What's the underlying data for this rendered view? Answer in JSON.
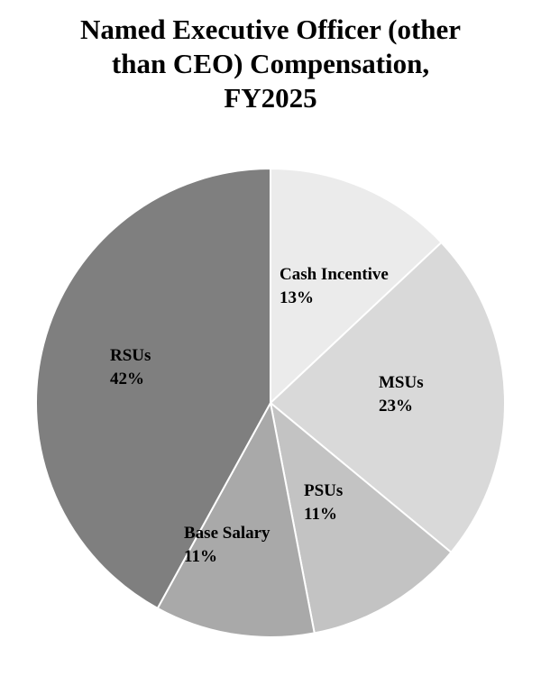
{
  "chart_data": {
    "type": "pie",
    "title_lines": [
      "Named Executive Officer (other",
      "than CEO) Compensation,",
      "FY2025"
    ],
    "slices": [
      {
        "name": "Cash Incentive",
        "value": 13,
        "value_label": "13%",
        "color": "#ebebeb"
      },
      {
        "name": "MSUs",
        "value": 23,
        "value_label": "23%",
        "color": "#d9d9d9"
      },
      {
        "name": "PSUs",
        "value": 11,
        "value_label": "11%",
        "color": "#c3c3c3"
      },
      {
        "name": "Base Salary",
        "value": 11,
        "value_label": "11%",
        "color": "#a9a9a9"
      },
      {
        "name": "RSUs",
        "value": 42,
        "value_label": "42%",
        "color": "#7f7f7f"
      }
    ],
    "start_angle": "12 o'clock",
    "direction": "clockwise",
    "legend": "none",
    "slice_border_color": "#ffffff"
  }
}
